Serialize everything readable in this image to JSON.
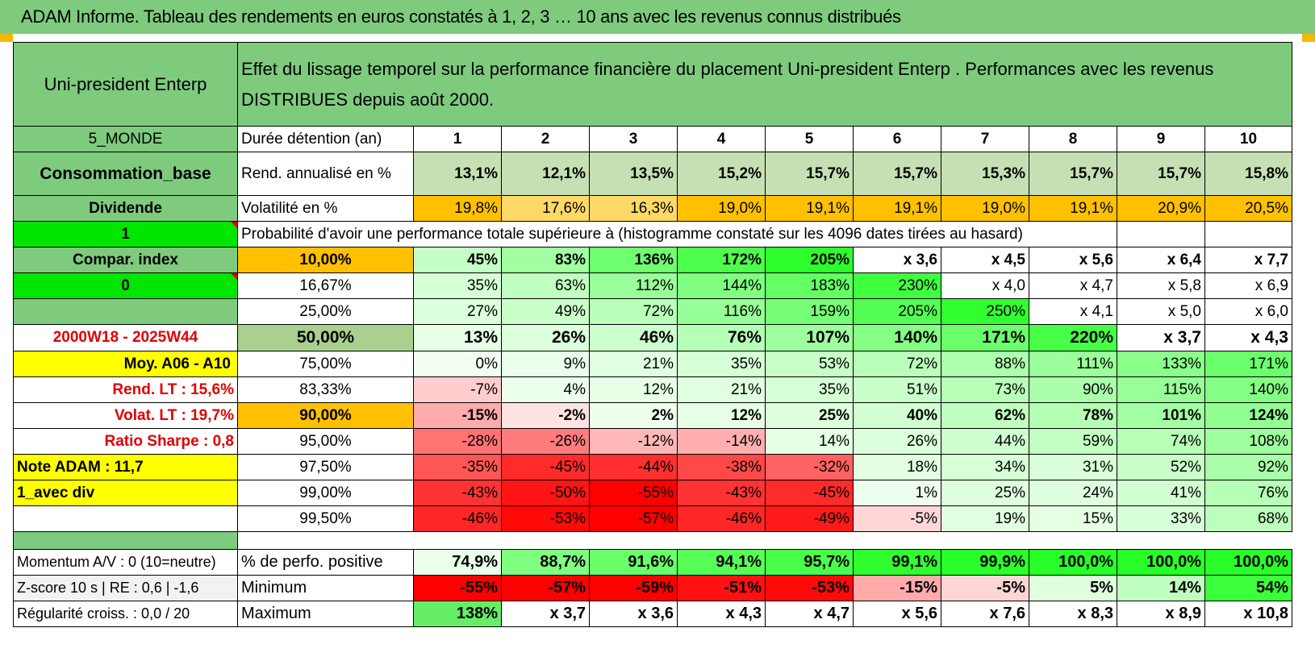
{
  "title": "ADAM Informe. Tableau des rendements en euros constatés à 1, 2, 3 … 10 ans avec les revenus connus distribués",
  "header": {
    "name": "Uni-president Enterp",
    "description": "Effet du lissage temporel sur la performance financière du placement Uni-president Enterp . Performances avec les revenus DISTRIBUES depuis août 2000."
  },
  "durations": [
    "1",
    "2",
    "3",
    "4",
    "5",
    "6",
    "7",
    "8",
    "9",
    "10"
  ],
  "rows_top": [
    {
      "side": "5_MONDE",
      "label": "Durée détention (an)"
    },
    {
      "side": "Consommation_base",
      "label": "Rend. annualisé en %",
      "values": [
        "13,1%",
        "12,1%",
        "13,5%",
        "15,2%",
        "15,7%",
        "15,7%",
        "15,3%",
        "15,7%",
        "15,7%",
        "15,8%"
      ]
    },
    {
      "side": "Dividende",
      "label": "Volatilité en %",
      "values": [
        "19,8%",
        "17,6%",
        "16,3%",
        "19,0%",
        "19,1%",
        "19,1%",
        "19,0%",
        "19,1%",
        "20,9%",
        "20,5%"
      ]
    }
  ],
  "prob_row": {
    "side": "1",
    "text": "Probabilité d'avoir une performance totale supérieure à (histogramme constaté sur les 4096 dates tirées au hasard)"
  },
  "prob_rows": [
    {
      "side": "Compar. index",
      "level": "10,00%",
      "values": [
        "45%",
        "83%",
        "136%",
        "172%",
        "205%",
        "x 3,6",
        "x 4,5",
        "x 5,6",
        "x 6,4",
        "x 7,7"
      ]
    },
    {
      "side": "0",
      "level": "16,67%",
      "values": [
        "35%",
        "63%",
        "112%",
        "144%",
        "183%",
        "230%",
        "x 4,0",
        "x 4,7",
        "x 5,8",
        "x 6,9"
      ]
    },
    {
      "side": "",
      "level": "25,00%",
      "values": [
        "27%",
        "49%",
        "72%",
        "116%",
        "159%",
        "205%",
        "250%",
        "x 4,1",
        "x 5,0",
        "x 6,0"
      ]
    },
    {
      "side": "2000W18 - 2025W44",
      "level": "50,00%",
      "values": [
        "13%",
        "26%",
        "46%",
        "76%",
        "107%",
        "140%",
        "171%",
        "220%",
        "x 3,7",
        "x 4,3"
      ]
    },
    {
      "side": "Moy. A06 - A10",
      "level": "75,00%",
      "values": [
        "0%",
        "9%",
        "21%",
        "35%",
        "53%",
        "72%",
        "88%",
        "111%",
        "133%",
        "171%"
      ]
    },
    {
      "side": "Rend. LT :    15,6%",
      "level": "83,33%",
      "values": [
        "-7%",
        "4%",
        "12%",
        "21%",
        "35%",
        "51%",
        "73%",
        "90%",
        "115%",
        "140%"
      ]
    },
    {
      "side": "Volat. LT :    19,7%",
      "level": "90,00%",
      "values": [
        "-15%",
        "-2%",
        "2%",
        "12%",
        "25%",
        "40%",
        "62%",
        "78%",
        "101%",
        "124%"
      ]
    },
    {
      "side": "Ratio Sharpe :     0,8",
      "level": "95,00%",
      "values": [
        "-28%",
        "-26%",
        "-12%",
        "-14%",
        "14%",
        "26%",
        "44%",
        "59%",
        "74%",
        "108%"
      ]
    },
    {
      "side": "Note ADAM : 11,7",
      "level": "97,50%",
      "values": [
        "-35%",
        "-45%",
        "-44%",
        "-38%",
        "-32%",
        "18%",
        "34%",
        "31%",
        "52%",
        "92%"
      ]
    },
    {
      "side": "1_avec div",
      "level": "99,00%",
      "values": [
        "-43%",
        "-50%",
        "-55%",
        "-43%",
        "-45%",
        "1%",
        "25%",
        "24%",
        "41%",
        "76%"
      ]
    },
    {
      "side": "",
      "level": "99,50%",
      "values": [
        "-46%",
        "-53%",
        "-57%",
        "-46%",
        "-49%",
        "-5%",
        "19%",
        "15%",
        "33%",
        "68%"
      ]
    }
  ],
  "bottom_rows": [
    {
      "side": "Momentum A/V : 0 (10=neutre)",
      "label": "% de perfo. positive",
      "values": [
        "74,9%",
        "88,7%",
        "91,6%",
        "94,1%",
        "95,7%",
        "99,1%",
        "99,9%",
        "100,0%",
        "100,0%",
        "100,0%"
      ]
    },
    {
      "side": "Z-score 10 s | RE : 0,6 | -1,6",
      "label": "Minimum",
      "values": [
        "-55%",
        "-57%",
        "-59%",
        "-51%",
        "-53%",
        "-15%",
        "-5%",
        "5%",
        "14%",
        "54%"
      ]
    },
    {
      "side": "Régularité croiss. : 0,0 / 20",
      "label": "Maximum",
      "values": [
        "138%",
        "x 3,7",
        "x 3,6",
        "x 4,3",
        "x 4,7",
        "x 5,6",
        "x 7,6",
        "x 8,3",
        "x 8,9",
        "x 10,8"
      ]
    }
  ],
  "colors": {
    "header_green": "#7ecb7e",
    "bright_green": "#00e600",
    "yellow": "#ffff00",
    "orange": "#ffc000",
    "olive": "#a9d08e",
    "red": "#ff0000"
  }
}
